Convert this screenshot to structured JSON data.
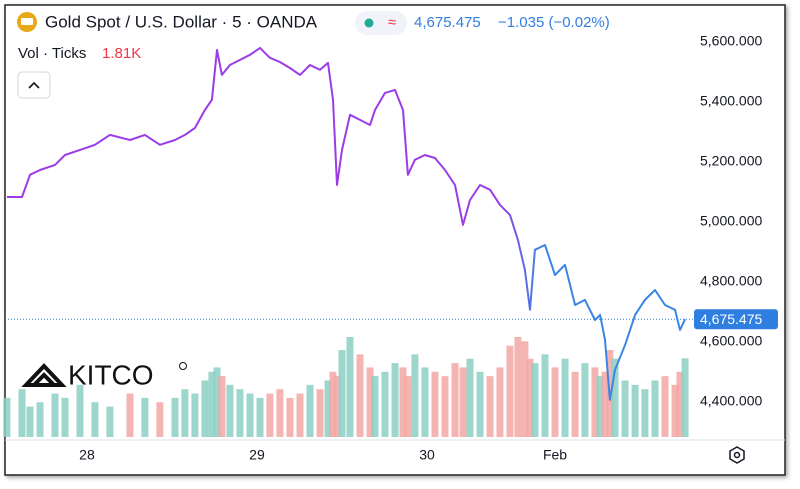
{
  "chart_data": {
    "type": "line",
    "title": "Gold Spot / U.S. Dollar · 5 · OANDA",
    "price": "4,675.475",
    "change": "−1.035 (−0.02%)",
    "volume_title": "Vol · Ticks",
    "brand": "KITCO",
    "x": [
      27.529,
      27.618,
      27.665,
      27.724,
      27.812,
      27.871,
      27.959,
      28.047,
      28.135,
      28.253,
      28.341,
      28.429,
      28.518,
      28.576,
      28.635,
      28.694,
      28.735,
      28.765,
      28.794,
      28.841,
      28.9,
      28.959,
      29.018,
      29.076,
      29.135,
      29.194,
      29.253,
      29.312,
      29.371,
      29.418,
      29.447,
      29.471,
      29.5,
      29.547,
      29.606,
      29.665,
      29.694,
      29.753,
      29.812,
      29.859,
      29.888,
      29.929,
      29.988,
      30.047,
      30.106,
      30.165,
      30.212,
      30.253,
      30.312,
      30.371,
      30.429,
      30.488,
      30.535,
      30.576,
      30.606,
      30.635,
      30.694,
      30.753,
      30.812,
      30.871,
      30.929,
      30.988,
      31.018,
      31.047,
      31.076,
      31.106,
      31.165,
      31.224,
      31.282,
      31.341,
      31.4,
      31.459,
      31.488,
      31.518
    ],
    "series": [
      {
        "name": "Gold Spot",
        "gradient": [
          "#9b3ce6",
          "#3a86e4"
        ],
        "values": [
          5083,
          5083,
          5157,
          5173,
          5190,
          5223,
          5240,
          5257,
          5290,
          5273,
          5290,
          5257,
          5273,
          5290,
          5313,
          5373,
          5407,
          5573,
          5490,
          5523,
          5540,
          5557,
          5580,
          5547,
          5533,
          5513,
          5490,
          5523,
          5507,
          5530,
          5407,
          5123,
          5240,
          5357,
          5340,
          5323,
          5373,
          5430,
          5440,
          5373,
          5157,
          5207,
          5223,
          5213,
          5173,
          5123,
          4990,
          5073,
          5123,
          5107,
          5057,
          5023,
          4940,
          4840,
          4707,
          4907,
          4923,
          4823,
          4857,
          4723,
          4740,
          4673,
          4690,
          4607,
          4407,
          4507,
          4590,
          4690,
          4740,
          4773,
          4723,
          4707,
          4640,
          4675.475
        ]
      }
    ],
    "volume": {
      "up_color": "#8ccfc3",
      "down_color": "#f2a7a3",
      "last_label": "1.81K",
      "values": [
        900,
        1100,
        700,
        800,
        1000,
        900,
        1200,
        800,
        700,
        1000,
        900,
        800,
        900,
        1100,
        1000,
        1300,
        1500,
        1600,
        1400,
        1200,
        1100,
        1000,
        900,
        1000,
        1100,
        900,
        1000,
        1200,
        1100,
        1300,
        1500,
        1400,
        2000,
        2300,
        1900,
        1600,
        1400,
        1500,
        1700,
        1600,
        1400,
        1900,
        1600,
        1500,
        1400,
        1700,
        1600,
        1800,
        1500,
        1400,
        1600,
        2100,
        2300,
        2200,
        1800,
        1700,
        1900,
        1600,
        1800,
        1500,
        1700,
        1600,
        1400,
        1500,
        2000,
        1800,
        1300,
        1200,
        1100,
        1300,
        1400,
        1200,
        1500,
        1810
      ]
    },
    "last_price": {
      "value": 4675.475,
      "label": "4,675.475"
    },
    "xlim": [
      27.518,
      31.547
    ],
    "xticks": [
      {
        "value": 28,
        "label": "28"
      },
      {
        "value": 29,
        "label": "29"
      },
      {
        "value": 30,
        "label": "30"
      },
      {
        "value": 30.753,
        "label": "Feb"
      }
    ],
    "ylim": [
      4273,
      5713
    ],
    "yticks": [
      {
        "value": 4400,
        "label": "4,400.000"
      },
      {
        "value": 4600,
        "label": "4,600.000"
      },
      {
        "value": 4800,
        "label": "4,800.000"
      },
      {
        "value": 5000,
        "label": "5,000.000"
      },
      {
        "value": 5200,
        "label": "5,200.000"
      },
      {
        "value": 5400,
        "label": "5,400.000"
      },
      {
        "value": 5600,
        "label": "5,600.000"
      }
    ],
    "grid": false
  }
}
